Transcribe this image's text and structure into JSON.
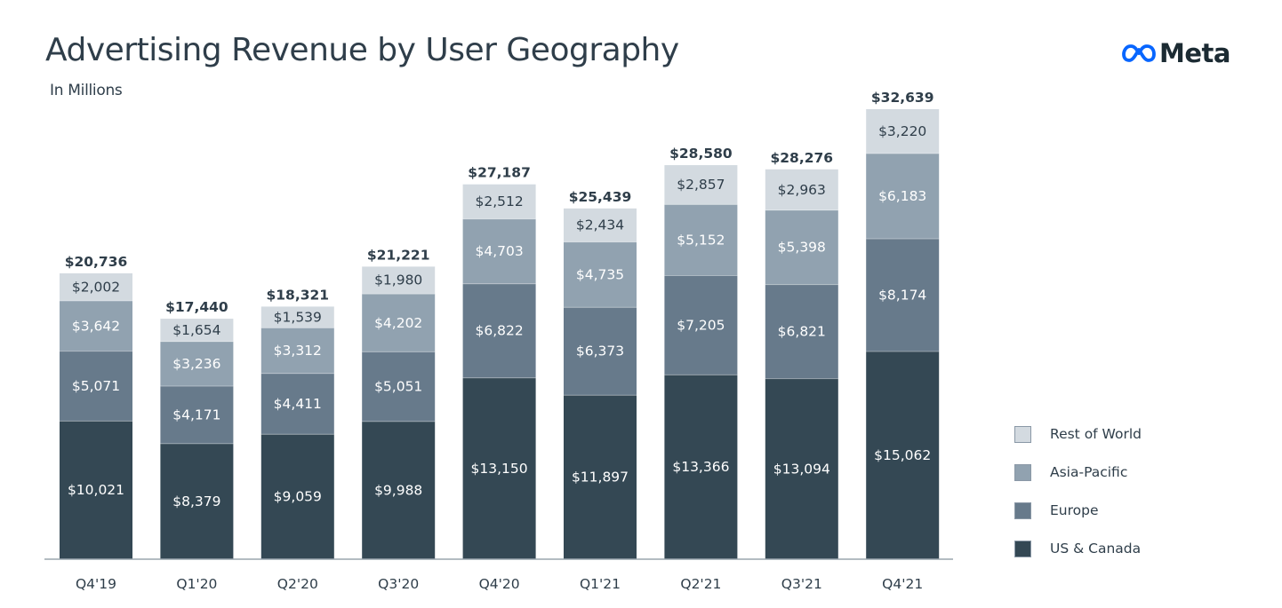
{
  "header": {
    "title": "Advertising Revenue by User Geography",
    "subtitle": "In Millions",
    "logo": {
      "icon": "meta-infinity-icon",
      "text": "Meta",
      "icon_color": "#0866ff"
    }
  },
  "chart_data": {
    "type": "bar",
    "stacked": true,
    "title": "Advertising Revenue by User Geography",
    "subtitle": "In Millions",
    "xlabel": "",
    "ylabel": "",
    "ylim": [
      0,
      33000
    ],
    "grid": false,
    "legend_position": "right",
    "categories": [
      "Q4'19",
      "Q1'20",
      "Q2'20",
      "Q3'20",
      "Q4'20",
      "Q1'21",
      "Q2'21",
      "Q3'21",
      "Q4'21"
    ],
    "series": [
      {
        "name": "US & Canada",
        "color": "#344854",
        "label_color": "#ffffff",
        "values": [
          10021,
          8379,
          9059,
          9988,
          13150,
          11897,
          13366,
          13094,
          15062
        ],
        "labels": [
          "$10,021",
          "$8,379",
          "$9,059",
          "$9,988",
          "$13,150",
          "$11,897",
          "$13,366",
          "$13,094",
          "$15,062"
        ]
      },
      {
        "name": "Europe",
        "color": "#677a8b",
        "label_color": "#ffffff",
        "values": [
          5071,
          4171,
          4411,
          5051,
          6822,
          6373,
          7205,
          6821,
          8174
        ],
        "labels": [
          "$5,071",
          "$4,171",
          "$4,411",
          "$5,051",
          "$6,822",
          "$6,373",
          "$7,205",
          "$6,821",
          "$8,174"
        ]
      },
      {
        "name": "Asia-Pacific",
        "color": "#91a2b0",
        "label_color": "#ffffff",
        "values": [
          3642,
          3236,
          3312,
          4202,
          4703,
          4735,
          5152,
          5398,
          6183
        ],
        "labels": [
          "$3,642",
          "$3,236",
          "$3,312",
          "$4,202",
          "$4,703",
          "$4,735",
          "$5,152",
          "$5,398",
          "$6,183"
        ]
      },
      {
        "name": "Rest of World",
        "color": "#d3dae0",
        "label_color": "#2f3e4a",
        "values": [
          2002,
          1654,
          1539,
          1980,
          2512,
          2434,
          2857,
          2963,
          3220
        ],
        "labels": [
          "$2,002",
          "$1,654",
          "$1,539",
          "$1,980",
          "$2,512",
          "$2,434",
          "$2,857",
          "$2,963",
          "$3,220"
        ]
      }
    ],
    "totals": [
      20736,
      17440,
      18321,
      21221,
      27187,
      25439,
      28580,
      28276,
      32639
    ],
    "total_labels": [
      "$20,736",
      "$17,440",
      "$18,321",
      "$21,221",
      "$27,187",
      "$25,439",
      "$28,580",
      "$28,276",
      "$32,639"
    ]
  },
  "legend": {
    "items": [
      {
        "label": "Rest of World",
        "color": "#d3dae0"
      },
      {
        "label": "Asia-Pacific",
        "color": "#91a2b0"
      },
      {
        "label": "Europe",
        "color": "#677a8b"
      },
      {
        "label": "US & Canada",
        "color": "#344854"
      }
    ]
  }
}
